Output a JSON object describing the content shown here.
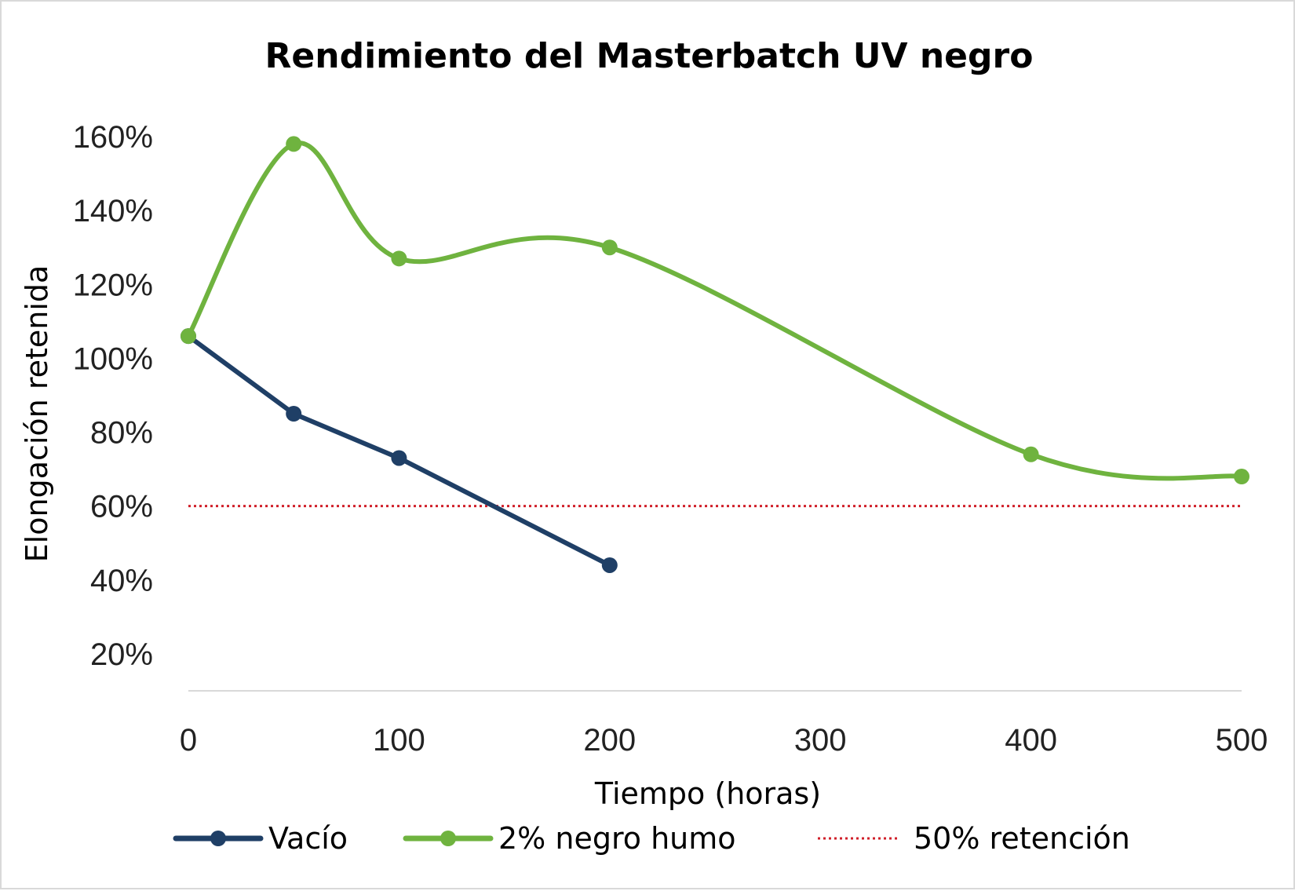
{
  "chart_data": {
    "type": "line",
    "title": "Rendimiento del Masterbatch UV negro",
    "xlabel": "Tiempo (horas)",
    "ylabel": "Elongación retenida",
    "xlim": [
      0,
      500
    ],
    "ylim": [
      20,
      160
    ],
    "x_ticks": [
      0,
      100,
      200,
      300,
      400,
      500
    ],
    "y_ticks": [
      20,
      40,
      60,
      80,
      100,
      120,
      140,
      160
    ],
    "y_tick_suffix": "%",
    "grid": false,
    "legend_position": "bottom",
    "series": [
      {
        "name": "Vacío",
        "color": "#1f3f66",
        "style": "solid-markers",
        "smooth": false,
        "x": [
          0,
          50,
          100,
          200
        ],
        "y": [
          106,
          85,
          73,
          44
        ]
      },
      {
        "name": "2% negro humo",
        "color": "#6fb33f",
        "style": "solid-markers",
        "smooth": true,
        "x": [
          0,
          50,
          100,
          200,
          400,
          500
        ],
        "y": [
          106,
          158,
          127,
          130,
          74,
          68
        ]
      },
      {
        "name": "50% retención",
        "color": "#d0202a",
        "style": "dotted",
        "smooth": false,
        "x": [
          0,
          500
        ],
        "y": [
          60,
          60
        ]
      }
    ]
  }
}
